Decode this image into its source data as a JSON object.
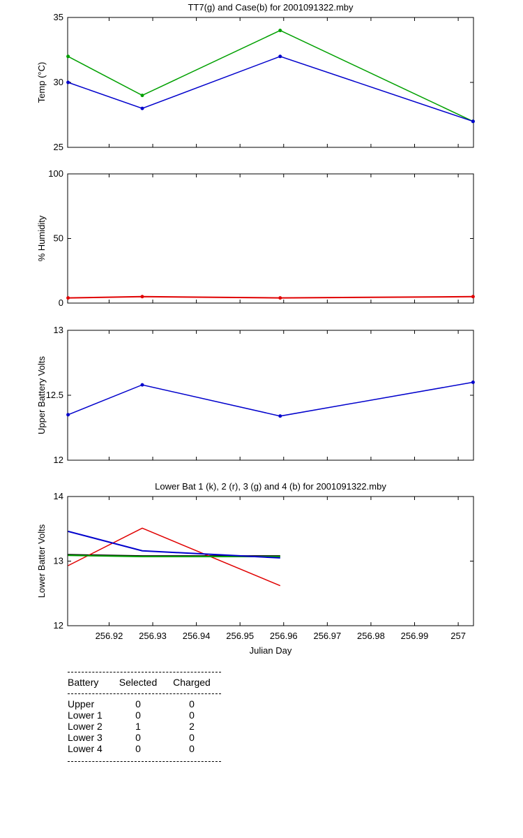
{
  "chart_data": [
    {
      "type": "line",
      "title": "TT7(g) and Case(b) for 2001091322.mby",
      "ylabel": "Temp  (°C)",
      "xlabel": "",
      "xlim": [
        256.9105,
        257.0035
      ],
      "ylim": [
        25,
        35
      ],
      "yticks": [
        "25",
        "30",
        "35"
      ],
      "grid": false,
      "x": [
        256.9106,
        256.9276,
        256.9592,
        257.0034
      ],
      "series": [
        {
          "color": "#00a000",
          "values": [
            32,
            29,
            34,
            27
          ]
        },
        {
          "color": "#0000cc",
          "values": [
            30,
            28,
            32,
            27
          ]
        }
      ]
    },
    {
      "type": "line",
      "title": "",
      "ylabel": "% Humidity",
      "xlabel": "",
      "xlim": [
        256.9105,
        257.0035
      ],
      "ylim": [
        0,
        100
      ],
      "yticks": [
        "0",
        "50",
        "100"
      ],
      "grid": false,
      "x": [
        256.9106,
        256.9276,
        256.9592,
        257.0034
      ],
      "series": [
        {
          "color": "#e00000",
          "values": [
            4,
            5,
            4,
            5
          ]
        }
      ]
    },
    {
      "type": "line",
      "title": "",
      "ylabel": "Upper Battery Volts",
      "xlabel": "",
      "xlim": [
        256.9105,
        257.0035
      ],
      "ylim": [
        12,
        13
      ],
      "yticks": [
        "12",
        "12.5",
        "13"
      ],
      "grid": false,
      "x": [
        256.9106,
        256.9276,
        256.9592,
        257.0034
      ],
      "series": [
        {
          "color": "#0000cc",
          "values": [
            12.35,
            12.58,
            12.34,
            12.6
          ]
        }
      ]
    },
    {
      "type": "line",
      "title": "Lower Bat 1 (k), 2 (r), 3 (g) and 4 (b) for 2001091322.mby",
      "ylabel": "Lower Batter Volts",
      "xlabel": "Julian Day",
      "xlim": [
        256.9105,
        257.0035
      ],
      "ylim": [
        12,
        14
      ],
      "yticks": [
        "12",
        "13",
        "14"
      ],
      "xticks": [
        "256.92",
        "256.93",
        "256.94",
        "256.95",
        "256.96",
        "256.97",
        "256.98",
        "256.99",
        "257"
      ],
      "grid": false,
      "x": [
        256.9106,
        256.9276,
        256.9592
      ],
      "series": [
        {
          "color": "#000000",
          "values": [
            13.1,
            13.08,
            13.08
          ]
        },
        {
          "color": "#e00000",
          "values": [
            12.93,
            13.51,
            12.62
          ]
        },
        {
          "color": "#00a000",
          "values": [
            13.09,
            13.07,
            13.07
          ]
        },
        {
          "color": "#0000cc",
          "values": [
            13.46,
            13.16,
            13.05
          ]
        }
      ]
    }
  ],
  "battery_table": {
    "headers": [
      "Battery",
      "Selected",
      "Charged"
    ],
    "rows": [
      [
        "Upper",
        "0",
        "0"
      ],
      [
        "Lower 1",
        "0",
        "0"
      ],
      [
        "Lower 2",
        "1",
        "2"
      ],
      [
        "Lower 3",
        "0",
        "0"
      ],
      [
        "Lower 4",
        "0",
        "0"
      ]
    ]
  }
}
